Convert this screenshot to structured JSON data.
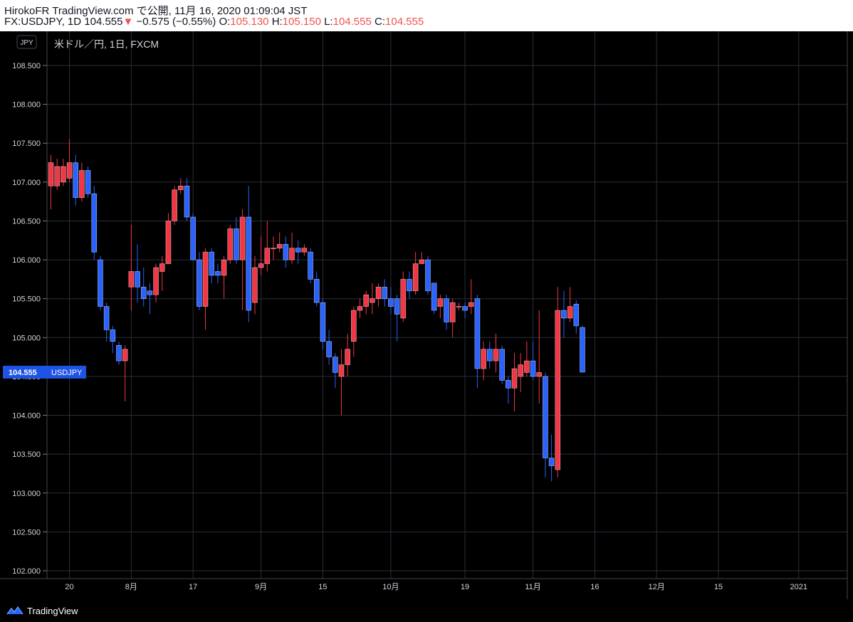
{
  "header": {
    "title": "HirokoFR TradingView.com で公開, 11月 16, 2020 01:09:04 JST",
    "symbol_line": "FX:USDJPY, 1D 104.555",
    "change_arrow": "▼",
    "change": "−0.575 (−0.55%)",
    "o_label": "O:",
    "o_value": "105.130",
    "h_label": "H:",
    "h_value": "105.150",
    "l_label": "L:",
    "l_value": "104.555",
    "c_label": "C:",
    "c_value": "104.555"
  },
  "chart": {
    "currency_badge": "JPY",
    "legend": "米ドル／円, 1日, FXCM",
    "price_tag_value": "104.555",
    "price_tag_symbol": "USDJPY"
  },
  "footer": {
    "brand": "TradingView"
  },
  "colors": {
    "up": "#f23645",
    "down": "#2962ff",
    "background": "#000000",
    "grid": "#2a2e39",
    "price_tag": "#1e53e5"
  },
  "chart_data": {
    "type": "candlestick",
    "title": "米ドル／円, 1日, FXCM",
    "ylim": [
      102.0,
      108.75
    ],
    "yticks": [
      "108.500",
      "108.000",
      "107.500",
      "107.000",
      "106.500",
      "106.000",
      "105.500",
      "105.000",
      "104.500",
      "104.000",
      "103.500",
      "103.000",
      "102.500",
      "102.000"
    ],
    "xticks": [
      {
        "label": "20",
        "index": 3
      },
      {
        "label": "8月",
        "index": 13
      },
      {
        "label": "17",
        "index": 23
      },
      {
        "label": "9月",
        "index": 34
      },
      {
        "label": "15",
        "index": 44
      },
      {
        "label": "10月",
        "index": 55
      },
      {
        "label": "19",
        "index": 67
      },
      {
        "label": "11月",
        "index": 78
      },
      {
        "label": "16",
        "index": 88
      },
      {
        "label": "12月",
        "index": 98
      },
      {
        "label": "15",
        "index": 108
      },
      {
        "label": "2021",
        "index": 121
      }
    ],
    "candles": [
      {
        "o": 106.95,
        "h": 107.35,
        "l": 106.65,
        "c": 107.25
      },
      {
        "o": 106.95,
        "h": 107.3,
        "l": 106.9,
        "c": 107.2
      },
      {
        "o": 107.0,
        "h": 107.3,
        "l": 106.95,
        "c": 107.2
      },
      {
        "o": 107.05,
        "h": 107.55,
        "l": 107.0,
        "c": 107.25
      },
      {
        "o": 107.25,
        "h": 107.35,
        "l": 106.7,
        "c": 106.8
      },
      {
        "o": 106.8,
        "h": 107.25,
        "l": 106.75,
        "c": 107.15
      },
      {
        "o": 107.15,
        "h": 107.2,
        "l": 106.8,
        "c": 106.85
      },
      {
        "o": 106.85,
        "h": 106.95,
        "l": 106.0,
        "c": 106.1
      },
      {
        "o": 106.0,
        "h": 106.05,
        "l": 105.35,
        "c": 105.4
      },
      {
        "o": 105.4,
        "h": 105.45,
        "l": 104.95,
        "c": 105.1
      },
      {
        "o": 105.1,
        "h": 105.15,
        "l": 104.8,
        "c": 104.95
      },
      {
        "o": 104.9,
        "h": 104.95,
        "l": 104.65,
        "c": 104.7
      },
      {
        "o": 104.7,
        "h": 104.9,
        "l": 104.18,
        "c": 104.85
      },
      {
        "o": 105.65,
        "h": 106.45,
        "l": 105.35,
        "c": 105.85
      },
      {
        "o": 105.85,
        "h": 106.2,
        "l": 105.45,
        "c": 105.65
      },
      {
        "o": 105.65,
        "h": 105.9,
        "l": 105.4,
        "c": 105.5
      },
      {
        "o": 105.6,
        "h": 105.7,
        "l": 105.3,
        "c": 105.55
      },
      {
        "o": 105.55,
        "h": 105.95,
        "l": 105.45,
        "c": 105.9
      },
      {
        "o": 105.85,
        "h": 106.05,
        "l": 105.6,
        "c": 105.95
      },
      {
        "o": 105.95,
        "h": 106.6,
        "l": 105.95,
        "c": 106.5
      },
      {
        "o": 106.5,
        "h": 106.95,
        "l": 106.45,
        "c": 106.9
      },
      {
        "o": 106.9,
        "h": 107.05,
        "l": 106.85,
        "c": 106.95
      },
      {
        "o": 106.95,
        "h": 107.05,
        "l": 106.5,
        "c": 106.55
      },
      {
        "o": 106.55,
        "h": 106.6,
        "l": 106.0,
        "c": 106.0
      },
      {
        "o": 106.0,
        "h": 106.1,
        "l": 105.35,
        "c": 105.4
      },
      {
        "o": 105.4,
        "h": 106.15,
        "l": 105.1,
        "c": 106.1
      },
      {
        "o": 106.1,
        "h": 106.15,
        "l": 105.7,
        "c": 105.8
      },
      {
        "o": 105.85,
        "h": 105.95,
        "l": 105.7,
        "c": 105.8
      },
      {
        "o": 105.8,
        "h": 106.05,
        "l": 105.5,
        "c": 106.0
      },
      {
        "o": 106.0,
        "h": 106.45,
        "l": 105.95,
        "c": 106.4
      },
      {
        "o": 106.4,
        "h": 106.55,
        "l": 105.95,
        "c": 106.0
      },
      {
        "o": 106.0,
        "h": 106.65,
        "l": 105.35,
        "c": 106.55
      },
      {
        "o": 106.55,
        "h": 106.95,
        "l": 105.2,
        "c": 105.35
      },
      {
        "o": 105.45,
        "h": 106.05,
        "l": 105.3,
        "c": 105.9
      },
      {
        "o": 105.9,
        "h": 106.3,
        "l": 105.8,
        "c": 105.95
      },
      {
        "o": 105.95,
        "h": 106.5,
        "l": 105.85,
        "c": 106.15
      },
      {
        "o": 106.15,
        "h": 106.3,
        "l": 106.0,
        "c": 106.15
      },
      {
        "o": 106.15,
        "h": 106.35,
        "l": 106.1,
        "c": 106.2
      },
      {
        "o": 106.2,
        "h": 106.3,
        "l": 105.9,
        "c": 106.0
      },
      {
        "o": 106.0,
        "h": 106.35,
        "l": 105.95,
        "c": 106.15
      },
      {
        "o": 106.15,
        "h": 106.25,
        "l": 105.95,
        "c": 106.1
      },
      {
        "o": 106.1,
        "h": 106.2,
        "l": 106.05,
        "c": 106.15
      },
      {
        "o": 106.1,
        "h": 106.15,
        "l": 105.7,
        "c": 105.75
      },
      {
        "o": 105.75,
        "h": 105.85,
        "l": 105.4,
        "c": 105.45
      },
      {
        "o": 105.45,
        "h": 105.5,
        "l": 104.85,
        "c": 104.95
      },
      {
        "o": 104.95,
        "h": 105.1,
        "l": 104.65,
        "c": 104.75
      },
      {
        "o": 104.75,
        "h": 104.8,
        "l": 104.35,
        "c": 104.55
      },
      {
        "o": 104.5,
        "h": 104.85,
        "l": 104.0,
        "c": 104.65
      },
      {
        "o": 104.65,
        "h": 105.05,
        "l": 104.5,
        "c": 104.85
      },
      {
        "o": 104.95,
        "h": 105.4,
        "l": 104.75,
        "c": 105.35
      },
      {
        "o": 105.35,
        "h": 105.5,
        "l": 105.25,
        "c": 105.4
      },
      {
        "o": 105.4,
        "h": 105.6,
        "l": 105.3,
        "c": 105.55
      },
      {
        "o": 105.45,
        "h": 105.7,
        "l": 105.3,
        "c": 105.5
      },
      {
        "o": 105.5,
        "h": 105.7,
        "l": 105.4,
        "c": 105.65
      },
      {
        "o": 105.65,
        "h": 105.75,
        "l": 105.4,
        "c": 105.5
      },
      {
        "o": 105.5,
        "h": 105.65,
        "l": 105.3,
        "c": 105.4
      },
      {
        "o": 105.5,
        "h": 105.55,
        "l": 104.95,
        "c": 105.3
      },
      {
        "o": 105.25,
        "h": 105.85,
        "l": 105.2,
        "c": 105.75
      },
      {
        "o": 105.75,
        "h": 105.85,
        "l": 105.5,
        "c": 105.6
      },
      {
        "o": 105.6,
        "h": 106.1,
        "l": 105.55,
        "c": 105.95
      },
      {
        "o": 105.95,
        "h": 106.1,
        "l": 105.95,
        "c": 106.0
      },
      {
        "o": 106.0,
        "h": 106.05,
        "l": 105.55,
        "c": 105.6
      },
      {
        "o": 105.7,
        "h": 105.7,
        "l": 105.3,
        "c": 105.35
      },
      {
        "o": 105.4,
        "h": 105.55,
        "l": 105.25,
        "c": 105.5
      },
      {
        "o": 105.5,
        "h": 105.55,
        "l": 105.1,
        "c": 105.2
      },
      {
        "o": 105.2,
        "h": 105.5,
        "l": 105.0,
        "c": 105.45
      },
      {
        "o": 105.4,
        "h": 105.45,
        "l": 105.35,
        "c": 105.4
      },
      {
        "o": 105.4,
        "h": 105.45,
        "l": 105.25,
        "c": 105.35
      },
      {
        "o": 105.4,
        "h": 105.75,
        "l": 105.3,
        "c": 105.45
      },
      {
        "o": 105.5,
        "h": 105.55,
        "l": 104.35,
        "c": 104.6
      },
      {
        "o": 104.6,
        "h": 104.95,
        "l": 104.45,
        "c": 104.85
      },
      {
        "o": 104.85,
        "h": 104.95,
        "l": 104.6,
        "c": 104.7
      },
      {
        "o": 104.7,
        "h": 105.05,
        "l": 104.55,
        "c": 104.85
      },
      {
        "o": 104.85,
        "h": 104.9,
        "l": 104.4,
        "c": 104.45
      },
      {
        "o": 104.45,
        "h": 104.5,
        "l": 104.15,
        "c": 104.35
      },
      {
        "o": 104.35,
        "h": 104.8,
        "l": 104.05,
        "c": 104.6
      },
      {
        "o": 104.5,
        "h": 104.8,
        "l": 104.3,
        "c": 104.65
      },
      {
        "o": 104.55,
        "h": 104.95,
        "l": 104.5,
        "c": 104.7
      },
      {
        "o": 104.7,
        "h": 104.95,
        "l": 104.45,
        "c": 104.5
      },
      {
        "o": 104.5,
        "h": 105.35,
        "l": 104.15,
        "c": 104.55
      },
      {
        "o": 104.5,
        "h": 104.55,
        "l": 103.2,
        "c": 103.45
      },
      {
        "o": 103.45,
        "h": 103.75,
        "l": 103.15,
        "c": 103.35
      },
      {
        "o": 103.3,
        "h": 105.65,
        "l": 103.2,
        "c": 105.35
      },
      {
        "o": 105.35,
        "h": 105.6,
        "l": 105.0,
        "c": 105.25
      },
      {
        "o": 105.25,
        "h": 105.65,
        "l": 105.2,
        "c": 105.4
      },
      {
        "o": 105.43,
        "h": 105.48,
        "l": 105.05,
        "c": 105.15
      },
      {
        "o": 105.13,
        "h": 105.15,
        "l": 104.555,
        "c": 104.555
      }
    ]
  }
}
